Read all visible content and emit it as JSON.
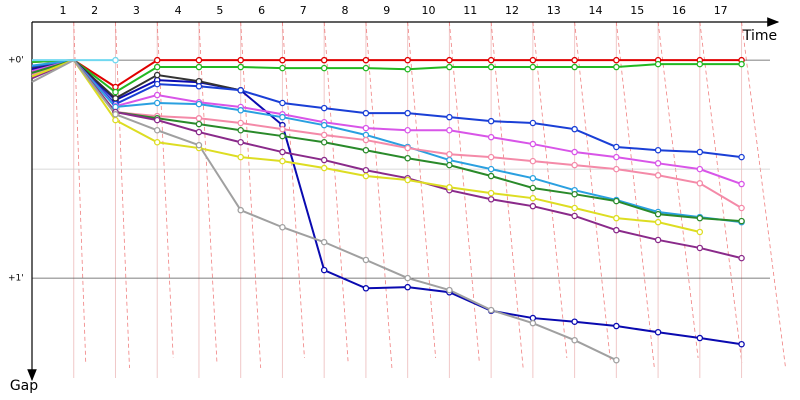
{
  "chart_data": {
    "type": "line",
    "x_label": "Time",
    "y_label": "Gap",
    "categories": [
      "1",
      "2",
      "3",
      "4",
      "5",
      "6",
      "7",
      "8",
      "9",
      "10",
      "11",
      "12",
      "13",
      "14",
      "15",
      "16",
      "17"
    ],
    "x": [
      0,
      1,
      2,
      3,
      4,
      5,
      6,
      7,
      8,
      9,
      10,
      11,
      12,
      13,
      14,
      15,
      16,
      17
    ],
    "xlim": [
      0,
      18.4
    ],
    "ylim": [
      -10.5,
      87.5
    ],
    "yticks": [
      {
        "value": 0,
        "label": "+0'"
      },
      {
        "value": 60,
        "label": "+1'"
      }
    ],
    "minor_yticks": [
      30
    ],
    "invert_y": true,
    "series": [
      {
        "color": "#e00000",
        "values": [
          0.5,
          0,
          7.4,
          0,
          0,
          0,
          0,
          0,
          0,
          0,
          0,
          0,
          0,
          0,
          0,
          0,
          0,
          0
        ]
      },
      {
        "color": "#22b822",
        "values": [
          0.5,
          0,
          8.8,
          1.9,
          1.9,
          1.9,
          2.2,
          2.2,
          2.2,
          2.5,
          1.9,
          1.9,
          1.9,
          1.9,
          1.9,
          1.1,
          1.1,
          1.1
        ]
      },
      {
        "color": "#0a0ab0",
        "values": [
          2.5,
          0,
          11,
          5.5,
          6.1,
          8.3,
          17.9,
          57.8,
          62.8,
          62.5,
          63.9,
          69,
          71,
          72,
          73.2,
          74.9,
          76.5,
          78.2
        ]
      },
      {
        "color": "#333333",
        "values": [
          2,
          0,
          10.5,
          4.1,
          5.8,
          8.3,
          null,
          null,
          null,
          null,
          null,
          null,
          null,
          null,
          null,
          null,
          null,
          null
        ]
      },
      {
        "color": "#1a3fd6",
        "values": [
          1.8,
          0,
          12.1,
          6.6,
          7.2,
          8.3,
          11.8,
          13.2,
          14.6,
          14.6,
          15.7,
          16.8,
          17.3,
          19,
          23.9,
          24.8,
          25.3,
          26.7
        ]
      },
      {
        "color": "#d855e8",
        "values": [
          3,
          0,
          12.7,
          9.6,
          11.6,
          12.9,
          14.9,
          17.1,
          18.7,
          19.3,
          19.3,
          21.2,
          23.1,
          25.3,
          26.7,
          28.4,
          30,
          34.1
        ]
      },
      {
        "color": "#2aa0e0",
        "values": [
          1.5,
          0,
          12.9,
          11.8,
          12.1,
          13.8,
          15.7,
          17.9,
          20.6,
          23.9,
          27.5,
          30,
          32.5,
          35.8,
          38.5,
          41.8,
          43.2,
          44.6
        ]
      },
      {
        "color": "#f48aa8",
        "values": [
          4,
          0,
          14.3,
          15.4,
          16,
          17.3,
          19,
          20.6,
          22,
          24.2,
          25.9,
          26.7,
          27.8,
          28.9,
          30,
          31.7,
          33.9,
          40.7
        ]
      },
      {
        "color": "#2a8a2a",
        "values": [
          3.5,
          0,
          14.3,
          16,
          17.6,
          19.3,
          20.9,
          22.6,
          24.8,
          27,
          28.9,
          31.9,
          35.2,
          36.9,
          38.8,
          42.4,
          43.5,
          44.3
        ]
      },
      {
        "color": "#8a2a8a",
        "values": [
          5,
          0,
          14.3,
          16.5,
          19.8,
          22.6,
          25.3,
          27.5,
          30.3,
          32.5,
          35.8,
          38.3,
          40.2,
          42.9,
          46.8,
          49.5,
          51.7,
          54.5
        ]
      },
      {
        "color": "#dddd22",
        "values": [
          4.5,
          0,
          16.5,
          22.6,
          24.2,
          26.7,
          27.8,
          29.7,
          31.9,
          33,
          35,
          36.6,
          38,
          40.7,
          43.5,
          44.6,
          47.3,
          null
        ]
      },
      {
        "color": "#a0a0a0",
        "values": [
          6,
          0,
          14.9,
          19.3,
          23.4,
          41.3,
          46,
          50.1,
          55,
          60,
          63.3,
          68.8,
          72.4,
          77.1,
          82.6,
          null,
          null,
          null
        ]
      },
      {
        "color": "#70d8f0",
        "values": [
          0,
          0,
          0,
          null,
          null,
          null,
          null,
          null,
          null,
          null,
          null,
          null,
          null,
          null,
          null,
          null,
          null,
          null
        ]
      }
    ]
  }
}
